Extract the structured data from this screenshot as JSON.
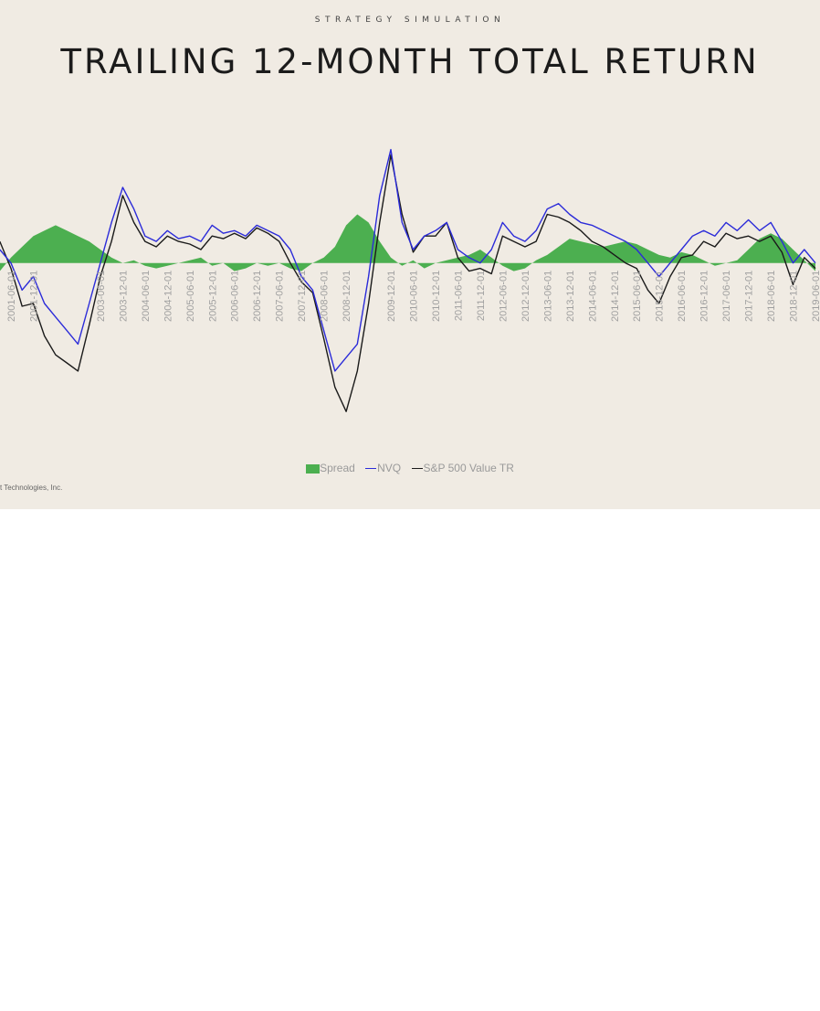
{
  "header": {
    "kicker": "STRATEGY SIMULATION",
    "title": "TRAILING 12-MONTH TOTAL RETURN"
  },
  "footer": {
    "text": "t Technologies, Inc."
  },
  "colors": {
    "spread": "#4caf50",
    "nvq": "#2b2bd9",
    "sp": "#1a1a1a",
    "background": "#f0ebe3"
  },
  "chart_data": {
    "type": "line",
    "x_ticks": [
      "2001-06-01",
      "2001-12-01",
      "2002-06-01",
      "2002-12-01",
      "2003-06-01",
      "2003-12-01",
      "2004-06-01",
      "2004-12-01",
      "2005-06-01",
      "2005-12-01",
      "2006-06-01",
      "2006-12-01",
      "2007-06-01",
      "2007-12-01",
      "2008-06-01",
      "2008-12-01",
      "2009-06-01",
      "2009-12-01",
      "2010-06-01",
      "2010-12-01",
      "2011-06-01",
      "2011-12-01",
      "2012-06-01",
      "2012-12-01",
      "2013-06-01",
      "2013-12-01",
      "2014-06-01",
      "2014-12-01",
      "2015-06-01",
      "2015-12-01",
      "2016-06-01",
      "2016-12-01",
      "2017-06-01",
      "2017-12-01",
      "2018-06-01",
      "2018-12-01",
      "2019-06-01"
    ],
    "x_tick_labels": [
      "2001-06-01",
      "2001-12-01",
      "",
      "",
      "2003-06-01",
      "2003-12-01",
      "2004-06-01",
      "2004-12-01",
      "2005-06-01",
      "2005-12-01",
      "2006-06-01",
      "2006-12-01",
      "2007-06-01",
      "2007-12-01",
      "2008-06-01",
      "2008-12-01",
      "",
      "2009-12-01",
      "2010-06-01",
      "2010-12-01",
      "2011-06-01",
      "2011-12-01",
      "2012-06-01",
      "2012-12-01",
      "2013-06-01",
      "2013-12-01",
      "2014-06-01",
      "2014-12-01",
      "2015-06-01",
      "2015-12-01",
      "2016-06-01",
      "2016-12-01",
      "2017-06-01",
      "2017-12-01",
      "2018-06-01",
      "2018-12-01",
      "2019-06-01"
    ],
    "x": [
      "2001-03",
      "2001-06",
      "2001-09",
      "2001-12",
      "2002-03",
      "2002-06",
      "2002-09",
      "2002-12",
      "2003-03",
      "2003-06",
      "2003-09",
      "2003-12",
      "2004-03",
      "2004-06",
      "2004-09",
      "2004-12",
      "2005-03",
      "2005-06",
      "2005-09",
      "2005-12",
      "2006-03",
      "2006-06",
      "2006-09",
      "2006-12",
      "2007-03",
      "2007-06",
      "2007-09",
      "2007-12",
      "2008-03",
      "2008-06",
      "2008-09",
      "2008-12",
      "2009-03",
      "2009-06",
      "2009-09",
      "2009-12",
      "2010-03",
      "2010-06",
      "2010-09",
      "2010-12",
      "2011-03",
      "2011-06",
      "2011-09",
      "2011-12",
      "2012-03",
      "2012-06",
      "2012-09",
      "2012-12",
      "2013-03",
      "2013-06",
      "2013-09",
      "2013-12",
      "2014-03",
      "2014-06",
      "2014-09",
      "2014-12",
      "2015-03",
      "2015-06",
      "2015-09",
      "2015-12",
      "2016-03",
      "2016-06",
      "2016-09",
      "2016-12",
      "2017-03",
      "2017-06",
      "2017-09",
      "2017-12",
      "2018-03",
      "2018-06",
      "2018-09",
      "2018-12",
      "2019-03",
      "2019-06"
    ],
    "series": [
      {
        "name": "Spread",
        "kind": "area",
        "values": [
          -3,
          2,
          6,
          10,
          12,
          14,
          12,
          10,
          8,
          5,
          2,
          0,
          1,
          -1,
          -2,
          -1,
          0,
          1,
          2,
          -1,
          0,
          -3,
          -2,
          0,
          -1,
          0,
          -2,
          -3,
          0,
          2,
          6,
          14,
          18,
          15,
          8,
          2,
          -1,
          1,
          -2,
          0,
          1,
          2,
          3,
          5,
          2,
          -1,
          -3,
          -2,
          1,
          3,
          6,
          9,
          8,
          7,
          6,
          7,
          8,
          7,
          5,
          3,
          2,
          4,
          3,
          1,
          -1,
          0,
          1,
          5,
          9,
          11,
          9,
          5,
          1,
          -3
        ],
        "label": "Spread"
      },
      {
        "name": "NVQ",
        "kind": "line",
        "values": [
          5,
          0,
          -10,
          -5,
          -15,
          -20,
          -25,
          -30,
          -15,
          0,
          15,
          28,
          20,
          10,
          8,
          12,
          9,
          10,
          8,
          14,
          11,
          12,
          10,
          14,
          12,
          10,
          5,
          -5,
          -10,
          -25,
          -40,
          -35,
          -30,
          -5,
          25,
          42,
          15,
          5,
          10,
          12,
          15,
          5,
          2,
          0,
          5,
          15,
          10,
          8,
          12,
          20,
          22,
          18,
          15,
          14,
          12,
          10,
          8,
          5,
          0,
          -5,
          0,
          5,
          10,
          12,
          10,
          15,
          12,
          16,
          12,
          15,
          8,
          0,
          5,
          0
        ],
        "label": "NVQ"
      },
      {
        "name": "S&P 500 Value TR",
        "kind": "line",
        "values": [
          8,
          -2,
          -16,
          -15,
          -27,
          -34,
          -37,
          -40,
          -23,
          -5,
          8,
          25,
          15,
          8,
          6,
          10,
          8,
          7,
          5,
          10,
          9,
          11,
          9,
          13,
          11,
          8,
          0,
          -7,
          -11,
          -28,
          -46,
          -55,
          -40,
          -15,
          15,
          40,
          18,
          4,
          10,
          10,
          15,
          2,
          -3,
          -2,
          -4,
          10,
          8,
          6,
          8,
          18,
          17,
          15,
          12,
          8,
          6,
          3,
          0,
          -2,
          -10,
          -15,
          -5,
          2,
          3,
          8,
          6,
          11,
          9,
          10,
          8,
          10,
          4,
          -8,
          2,
          -2
        ],
        "label": "S&P 500 Value TR"
      }
    ],
    "legend": {
      "position": "bottom",
      "entries": [
        "Spread",
        "NVQ",
        "S&P 500 Value TR"
      ]
    },
    "ylim": [
      -60,
      50
    ],
    "grid": false
  }
}
